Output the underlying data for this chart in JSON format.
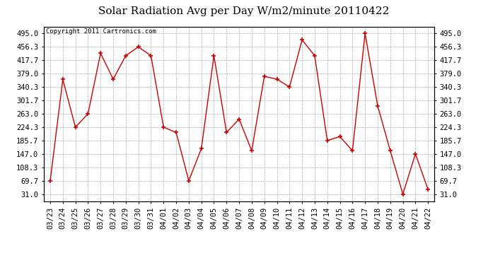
{
  "title": "Solar Radiation Avg per Day W/m2/minute 20110422",
  "copyright_text": "Copyright 2011 Cartronics.com",
  "x_labels": [
    "03/23",
    "03/24",
    "03/25",
    "03/26",
    "03/27",
    "03/28",
    "03/29",
    "03/30",
    "03/31",
    "04/01",
    "04/02",
    "04/03",
    "04/04",
    "04/05",
    "04/06",
    "04/07",
    "04/08",
    "04/09",
    "04/10",
    "04/11",
    "04/12",
    "04/13",
    "04/14",
    "04/15",
    "04/16",
    "04/17",
    "04/18",
    "04/19",
    "04/20",
    "04/21",
    "04/22"
  ],
  "y_values": [
    69.7,
    362.0,
    224.3,
    263.0,
    437.7,
    363.0,
    430.7,
    456.3,
    430.7,
    224.3,
    209.0,
    69.7,
    162.3,
    430.7,
    209.0,
    247.7,
    156.3,
    371.0,
    363.0,
    340.3,
    476.3,
    430.7,
    185.7,
    197.3,
    156.3,
    495.0,
    286.3,
    156.3,
    31.0,
    147.0,
    44.3
  ],
  "y_ticks": [
    31.0,
    69.7,
    108.3,
    147.0,
    185.7,
    224.3,
    263.0,
    301.7,
    340.3,
    379.0,
    417.7,
    456.3,
    495.0
  ],
  "line_color": "#cc0000",
  "marker_color": "#cc0000",
  "background_color": "#ffffff",
  "plot_bg_color": "#ffffff",
  "grid_color": "#999999",
  "title_fontsize": 11,
  "copyright_fontsize": 6.5,
  "tick_fontsize": 7.5
}
